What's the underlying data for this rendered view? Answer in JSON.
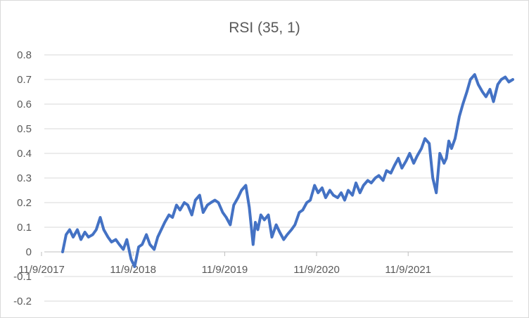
{
  "chart_data": {
    "type": "line",
    "title": "RSI (35, 1)",
    "xlabel": "",
    "ylabel": "",
    "ylim": [
      -0.2,
      0.8
    ],
    "xlim": [
      "2017-11-09",
      "2022-12-31"
    ],
    "yticks": [
      "0.8",
      "0.7",
      "0.6",
      "0.5",
      "0.4",
      "0.3",
      "0.2",
      "0.1",
      "0",
      "-0.1",
      "-0.2"
    ],
    "ytick_values": [
      0.8,
      0.7,
      0.6,
      0.5,
      0.4,
      0.3,
      0.2,
      0.1,
      0,
      -0.1,
      -0.2
    ],
    "xticks": [
      "11/9/2017",
      "11/9/2018",
      "11/9/2019",
      "11/9/2020",
      "11/9/2021"
    ],
    "xtick_dates": [
      "2017-11-09",
      "2018-11-09",
      "2019-11-09",
      "2020-11-09",
      "2021-11-09"
    ],
    "grid": true,
    "legend": "none",
    "line_color": "#4472c4",
    "series": [
      {
        "x": [
          "2018-02-01",
          "2018-02-15",
          "2018-03-01",
          "2018-03-15",
          "2018-04-01",
          "2018-04-15",
          "2018-05-01",
          "2018-05-15",
          "2018-06-01",
          "2018-06-15",
          "2018-07-01",
          "2018-07-15",
          "2018-08-01",
          "2018-08-15",
          "2018-09-01",
          "2018-09-15",
          "2018-10-01",
          "2018-10-15",
          "2018-11-01",
          "2018-11-15",
          "2018-12-01",
          "2018-12-15",
          "2019-01-01",
          "2019-01-15",
          "2019-02-01",
          "2019-02-15",
          "2019-03-01",
          "2019-03-15",
          "2019-04-01",
          "2019-04-15",
          "2019-05-01",
          "2019-05-15",
          "2019-06-01",
          "2019-06-15",
          "2019-07-01",
          "2019-07-15",
          "2019-08-01",
          "2019-08-15",
          "2019-09-01",
          "2019-09-15",
          "2019-10-01",
          "2019-10-15",
          "2019-11-01",
          "2019-11-15",
          "2019-12-01",
          "2019-12-15",
          "2020-01-01",
          "2020-01-15",
          "2020-02-01",
          "2020-02-15",
          "2020-03-01",
          "2020-03-10",
          "2020-03-20",
          "2020-04-01",
          "2020-04-15",
          "2020-05-01",
          "2020-05-15",
          "2020-06-01",
          "2020-06-15",
          "2020-07-01",
          "2020-07-15",
          "2020-08-01",
          "2020-08-15",
          "2020-09-01",
          "2020-09-15",
          "2020-10-01",
          "2020-10-15",
          "2020-11-01",
          "2020-11-15",
          "2020-12-01",
          "2020-12-15",
          "2021-01-01",
          "2021-01-15",
          "2021-02-01",
          "2021-02-15",
          "2021-03-01",
          "2021-03-15",
          "2021-04-01",
          "2021-04-15",
          "2021-05-01",
          "2021-05-15",
          "2021-06-01",
          "2021-06-15",
          "2021-07-01",
          "2021-07-15",
          "2021-08-01",
          "2021-08-15",
          "2021-09-01",
          "2021-09-15",
          "2021-10-01",
          "2021-10-15",
          "2021-11-01",
          "2021-11-15",
          "2021-12-01",
          "2021-12-15",
          "2022-01-01",
          "2022-01-15",
          "2022-02-01",
          "2022-02-15",
          "2022-03-01",
          "2022-03-15",
          "2022-04-01",
          "2022-04-10",
          "2022-04-20",
          "2022-05-01",
          "2022-05-15",
          "2022-06-01",
          "2022-06-15",
          "2022-07-01",
          "2022-07-15",
          "2022-08-01",
          "2022-08-15",
          "2022-09-01",
          "2022-09-15",
          "2022-10-01",
          "2022-10-15",
          "2022-11-01",
          "2022-11-15",
          "2022-12-01",
          "2022-12-15",
          "2022-12-31"
        ],
        "y": [
          0.0,
          0.07,
          0.09,
          0.06,
          0.09,
          0.05,
          0.08,
          0.06,
          0.07,
          0.09,
          0.14,
          0.09,
          0.06,
          0.04,
          0.05,
          0.03,
          0.01,
          0.05,
          -0.03,
          -0.06,
          0.02,
          0.03,
          0.07,
          0.03,
          0.01,
          0.06,
          0.09,
          0.12,
          0.15,
          0.14,
          0.19,
          0.17,
          0.2,
          0.19,
          0.15,
          0.21,
          0.23,
          0.16,
          0.19,
          0.2,
          0.21,
          0.2,
          0.16,
          0.14,
          0.11,
          0.19,
          0.22,
          0.25,
          0.27,
          0.18,
          0.03,
          0.12,
          0.09,
          0.15,
          0.13,
          0.15,
          0.06,
          0.11,
          0.08,
          0.05,
          0.07,
          0.09,
          0.11,
          0.16,
          0.17,
          0.2,
          0.21,
          0.27,
          0.24,
          0.26,
          0.22,
          0.25,
          0.23,
          0.22,
          0.24,
          0.21,
          0.25,
          0.23,
          0.28,
          0.24,
          0.27,
          0.29,
          0.28,
          0.3,
          0.31,
          0.29,
          0.33,
          0.32,
          0.35,
          0.38,
          0.34,
          0.37,
          0.4,
          0.36,
          0.39,
          0.42,
          0.46,
          0.44,
          0.3,
          0.24,
          0.4,
          0.36,
          0.38,
          0.45,
          0.42,
          0.46,
          0.55,
          0.6,
          0.65,
          0.7,
          0.72,
          0.68,
          0.65,
          0.63,
          0.66,
          0.61,
          0.68,
          0.7,
          0.71,
          0.69,
          0.7
        ]
      }
    ]
  }
}
